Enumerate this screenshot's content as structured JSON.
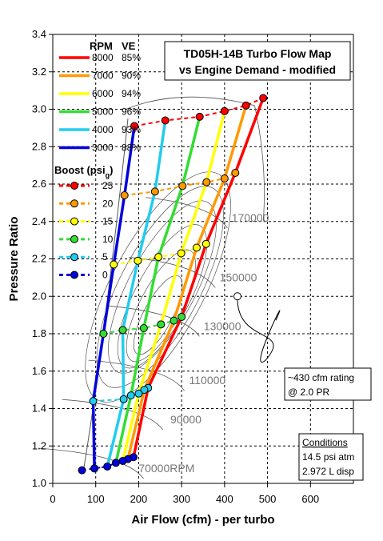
{
  "chart_data": {
    "type": "line",
    "title": "TD05H-14B Turbo Flow Map",
    "subtitle": "vs Engine Demand - modified",
    "xlabel": "Air Flow (cfm) - per turbo",
    "ylabel": "Pressure Ratio",
    "xlim": [
      0,
      700
    ],
    "ylim": [
      1.0,
      3.4
    ],
    "xticks": [
      0,
      100,
      200,
      300,
      400,
      500,
      600
    ],
    "yticks": [
      1.0,
      1.2,
      1.4,
      1.6,
      1.8,
      2.0,
      2.2,
      2.4,
      2.6,
      2.8,
      3.0,
      3.2,
      3.4
    ],
    "xtick_labels": [
      "0",
      "100",
      "200",
      "300",
      "400",
      "500",
      "600"
    ],
    "ytick_labels": [
      "1.0",
      "1.2",
      "1.4",
      "1.6",
      "1.8",
      "2.0",
      "2.2",
      "2.4",
      "2.6",
      "2.8",
      "3.0",
      "3.2",
      "3.4"
    ],
    "grid": true,
    "rpm_legend": {
      "header_rpm": "RPM",
      "header_ve": "VE",
      "items": [
        {
          "rpm": "8000",
          "ve": "85%",
          "color": "#ff0000"
        },
        {
          "rpm": "7000",
          "ve": "90%",
          "color": "#ff9900"
        },
        {
          "rpm": "6000",
          "ve": "94%",
          "color": "#ffff00"
        },
        {
          "rpm": "5000",
          "ve": "96%",
          "color": "#33dd33"
        },
        {
          "rpm": "4000",
          "ve": "93%",
          "color": "#22ccee"
        },
        {
          "rpm": "3000",
          "ve": "88%",
          "color": "#0000dd"
        }
      ]
    },
    "boost_legend": {
      "header": "Boost (psi",
      "header_sub": "g",
      "header_end": ")",
      "items": [
        {
          "label": "25",
          "color": "#ff0000",
          "marker": "#ff0000"
        },
        {
          "label": "20",
          "color": "#ff9900",
          "marker": "#ff9900"
        },
        {
          "label": "15",
          "color": "#ffff00",
          "marker": "#ffff00"
        },
        {
          "label": "10",
          "color": "#33dd33",
          "marker": "#33dd33"
        },
        {
          "label": "5",
          "color": "#22ccee",
          "marker": "#22ccee"
        },
        {
          "label": "0",
          "color": "#0000dd",
          "marker": "#0000dd"
        }
      ]
    },
    "boost_levels": [
      0,
      5,
      10,
      15,
      20,
      25
    ],
    "series": [
      {
        "name": "8000",
        "color": "#ff0000",
        "x": [
          188,
          222,
          300,
          357,
          425,
          490
        ],
        "y": [
          1.14,
          1.51,
          1.89,
          2.28,
          2.66,
          3.06
        ]
      },
      {
        "name": "7000",
        "color": "#ff9900",
        "x": [
          175,
          213,
          282,
          335,
          400,
          450
        ],
        "y": [
          1.13,
          1.5,
          1.87,
          2.26,
          2.63,
          3.02
        ]
      },
      {
        "name": "6000",
        "color": "#ffff00",
        "x": [
          163,
          200,
          252,
          299,
          358,
          400
        ],
        "y": [
          1.12,
          1.48,
          1.85,
          2.23,
          2.61,
          2.99
        ]
      },
      {
        "name": "5000",
        "color": "#33dd33",
        "x": [
          147,
          182,
          212,
          246,
          302,
          342
        ],
        "y": [
          1.11,
          1.47,
          1.83,
          2.21,
          2.59,
          2.96
        ]
      },
      {
        "name": "4000",
        "color": "#22ccee",
        "x": [
          127,
          165,
          163,
          198,
          238,
          262
        ],
        "y": [
          1.09,
          1.45,
          1.82,
          2.19,
          2.56,
          2.94
        ]
      },
      {
        "name": "3000",
        "color": "#0000dd",
        "x": [
          97,
          94,
          118,
          142,
          167,
          190
        ],
        "y": [
          1.08,
          1.44,
          1.8,
          2.17,
          2.54,
          2.91
        ]
      }
    ],
    "corner_points": [
      {
        "x": 68,
        "y": 1.07
      },
      {
        "x": 97,
        "y": 1.08
      }
    ],
    "speed_lines": [
      {
        "label": "70000RPM",
        "label_x": 265,
        "label_y": 1.06
      },
      {
        "label": "90000",
        "label_x": 310,
        "label_y": 1.32
      },
      {
        "label": "110000",
        "label_x": 360,
        "label_y": 1.53
      },
      {
        "label": "130000",
        "label_x": 395,
        "label_y": 1.82
      },
      {
        "label": "150000",
        "label_x": 432,
        "label_y": 2.08
      },
      {
        "label": "170000",
        "label_x": 460,
        "label_y": 2.4
      }
    ],
    "annotations": {
      "rating_line1": "~430 cfm rating",
      "rating_line2": "@ 2.0 PR",
      "rating_point": {
        "x": 430,
        "y": 2.0
      },
      "conditions_title": "Conditions",
      "conditions_line1": "14.5 psi atm",
      "conditions_line2": "2.972 L disp"
    }
  }
}
